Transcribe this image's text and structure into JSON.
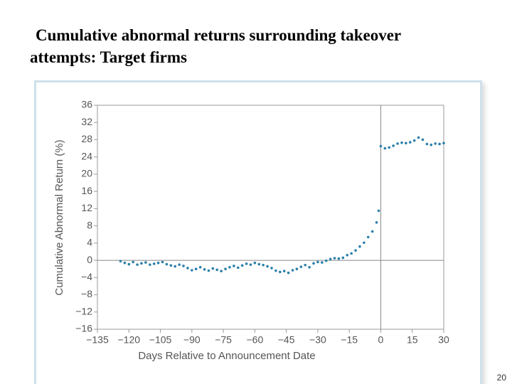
{
  "chart_data": {
    "type": "scatter",
    "title": [
      "Cumulative abnormal returns surrounding takeover",
      "attempts: Target firms"
    ],
    "x_label": "Days Relative to Announcement Date",
    "y_label": "Cumulative Abnormal Return (%)",
    "color": "#2b7fa9",
    "xlim": [
      -135,
      30
    ],
    "ylim": [
      -16,
      36
    ],
    "xticks": [
      {
        "value": -135,
        "label": "−135"
      },
      {
        "value": -120,
        "label": "−120"
      },
      {
        "value": -105,
        "label": "−105"
      },
      {
        "value": -90,
        "label": "−90"
      },
      {
        "value": -75,
        "label": "−75"
      },
      {
        "value": -60,
        "label": "−60"
      },
      {
        "value": -45,
        "label": "−45"
      },
      {
        "value": -30,
        "label": "−30"
      },
      {
        "value": -15,
        "label": "−15"
      },
      0,
      15,
      30
    ],
    "yticks": [
      36,
      32,
      28,
      24,
      20,
      16,
      12,
      8,
      4,
      0,
      {
        "value": -4,
        "label": "−4"
      },
      {
        "value": -8,
        "label": "−8"
      },
      {
        "value": -12,
        "label": "−12"
      },
      {
        "value": -16,
        "label": "−16"
      }
    ],
    "x": [
      -124,
      -122,
      -120,
      -118,
      -116,
      -114,
      -112,
      -110,
      -108,
      -106,
      -104,
      -102,
      -100,
      -98,
      -96,
      -94,
      -92,
      -90,
      -88,
      -86,
      -84,
      -82,
      -80,
      -78,
      -76,
      -74,
      -72,
      -70,
      -68,
      -66,
      -64,
      -62,
      -60,
      -58,
      -56,
      -54,
      -52,
      -50,
      -48,
      -46,
      -44,
      -42,
      -40,
      -38,
      -36,
      -34,
      -32,
      -30,
      -28,
      -26,
      -24,
      -22,
      -20,
      -18,
      -16,
      -14,
      -12,
      -10,
      -8,
      -6,
      -4,
      -2,
      -1,
      0,
      2,
      4,
      6,
      8,
      10,
      12,
      14,
      16,
      18,
      20,
      22,
      24,
      26,
      28,
      30
    ],
    "values": [
      -0.2,
      -0.6,
      -0.9,
      -0.4,
      -1.0,
      -0.7,
      -0.5,
      -1.0,
      -0.8,
      -0.6,
      -0.4,
      -0.9,
      -1.2,
      -1.4,
      -1.0,
      -1.3,
      -1.8,
      -2.3,
      -2.0,
      -1.6,
      -2.1,
      -2.4,
      -1.9,
      -2.2,
      -2.5,
      -2.0,
      -1.6,
      -1.3,
      -1.7,
      -1.2,
      -0.8,
      -1.0,
      -0.6,
      -0.9,
      -1.1,
      -1.4,
      -1.8,
      -2.4,
      -2.7,
      -2.5,
      -2.9,
      -2.3,
      -2.0,
      -1.5,
      -1.1,
      -1.6,
      -0.7,
      -0.4,
      -0.5,
      -0.1,
      0.3,
      0.5,
      0.4,
      0.6,
      1.2,
      1.6,
      2.3,
      3.2,
      4.1,
      5.4,
      6.7,
      8.8,
      11.5,
      26.5,
      26.0,
      26.2,
      26.6,
      27.1,
      27.3,
      27.2,
      27.4,
      27.8,
      28.5,
      28.0,
      27.0,
      26.8,
      27.1,
      27.0,
      27.2
    ]
  },
  "page_number": "20"
}
